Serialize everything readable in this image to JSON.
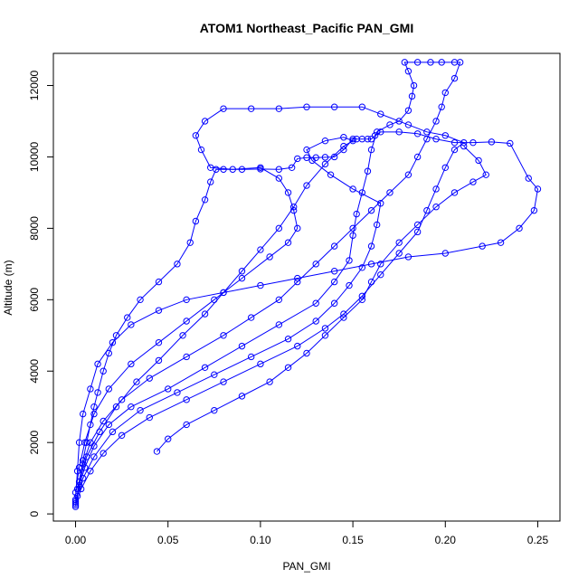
{
  "chart_data": {
    "type": "line",
    "title": "ATOM1 Northeast_Pacific PAN_GMI",
    "xlabel": "PAN_GMI",
    "ylabel": "Altitude (m)",
    "xlim": [
      -0.012,
      0.262
    ],
    "ylim": [
      -200,
      12900
    ],
    "xticks": [
      0.0,
      0.05,
      0.1,
      0.15,
      0.2,
      0.25
    ],
    "xtick_labels": [
      "0.00",
      "0.05",
      "0.10",
      "0.15",
      "0.20",
      "0.25"
    ],
    "yticks": [
      0,
      2000,
      4000,
      6000,
      8000,
      10000,
      12000
    ],
    "ytick_labels": [
      "0",
      "2000",
      "4000",
      "6000",
      "8000",
      "10000",
      "12000"
    ],
    "grid": false,
    "marker": "open-circle",
    "color": "#0000ff",
    "series": [
      {
        "points": [
          [
            0.0,
            200
          ],
          [
            0.001,
            500
          ],
          [
            0.002,
            900
          ],
          [
            0.004,
            1500
          ],
          [
            0.006,
            2000
          ],
          [
            0.008,
            2500
          ],
          [
            0.01,
            3000
          ],
          [
            0.012,
            3400
          ],
          [
            0.015,
            4000
          ],
          [
            0.018,
            4500
          ],
          [
            0.022,
            5000
          ],
          [
            0.028,
            5500
          ],
          [
            0.035,
            6000
          ],
          [
            0.045,
            6500
          ],
          [
            0.055,
            7000
          ],
          [
            0.062,
            7600
          ],
          [
            0.065,
            8200
          ],
          [
            0.07,
            8800
          ],
          [
            0.073,
            9300
          ],
          [
            0.076,
            9650
          ],
          [
            0.08,
            9650
          ],
          [
            0.09,
            9650
          ],
          [
            0.1,
            9660
          ],
          [
            0.11,
            9650
          ],
          [
            0.117,
            9700
          ],
          [
            0.12,
            9950
          ],
          [
            0.125,
            9980
          ],
          [
            0.13,
            9980
          ],
          [
            0.135,
            9990
          ],
          [
            0.14,
            10000
          ],
          [
            0.145,
            10200
          ],
          [
            0.15,
            10500
          ],
          [
            0.152,
            10500
          ],
          [
            0.155,
            10500
          ],
          [
            0.158,
            10500
          ],
          [
            0.16,
            10500
          ],
          [
            0.162,
            10600
          ],
          [
            0.165,
            10700
          ],
          [
            0.175,
            10700
          ],
          [
            0.185,
            10650
          ],
          [
            0.195,
            10500
          ],
          [
            0.205,
            10400
          ],
          [
            0.215,
            10400
          ],
          [
            0.225,
            10420
          ],
          [
            0.235,
            10380
          ],
          [
            0.245,
            9400
          ],
          [
            0.25,
            9100
          ],
          [
            0.248,
            8500
          ],
          [
            0.24,
            8000
          ],
          [
            0.23,
            7600
          ],
          [
            0.22,
            7500
          ],
          [
            0.2,
            7300
          ],
          [
            0.18,
            7200
          ],
          [
            0.16,
            7000
          ],
          [
            0.14,
            6800
          ],
          [
            0.12,
            6600
          ],
          [
            0.1,
            6400
          ],
          [
            0.08,
            6200
          ],
          [
            0.06,
            6000
          ],
          [
            0.045,
            5700
          ],
          [
            0.03,
            5300
          ],
          [
            0.02,
            4800
          ],
          [
            0.012,
            4200
          ],
          [
            0.008,
            3500
          ],
          [
            0.004,
            2800
          ],
          [
            0.002,
            2000
          ],
          [
            0.001,
            1200
          ],
          [
            0.0,
            400
          ]
        ]
      },
      {
        "points": [
          [
            0.0,
            300
          ],
          [
            0.002,
            800
          ],
          [
            0.005,
            1300
          ],
          [
            0.01,
            1900
          ],
          [
            0.018,
            2500
          ],
          [
            0.03,
            3000
          ],
          [
            0.05,
            3500
          ],
          [
            0.07,
            4100
          ],
          [
            0.09,
            4700
          ],
          [
            0.11,
            5300
          ],
          [
            0.13,
            5900
          ],
          [
            0.14,
            6500
          ],
          [
            0.148,
            7100
          ],
          [
            0.15,
            7800
          ],
          [
            0.152,
            8400
          ],
          [
            0.155,
            9000
          ],
          [
            0.158,
            9600
          ],
          [
            0.16,
            10200
          ],
          [
            0.163,
            10700
          ],
          [
            0.17,
            10900
          ],
          [
            0.175,
            11000
          ],
          [
            0.18,
            11300
          ],
          [
            0.182,
            11700
          ],
          [
            0.183,
            12000
          ],
          [
            0.18,
            12400
          ],
          [
            0.178,
            12650
          ],
          [
            0.185,
            12650
          ],
          [
            0.192,
            12650
          ],
          [
            0.198,
            12650
          ],
          [
            0.205,
            12650
          ],
          [
            0.208,
            12650
          ],
          [
            0.205,
            12200
          ],
          [
            0.2,
            11800
          ],
          [
            0.198,
            11400
          ],
          [
            0.195,
            11000
          ],
          [
            0.19,
            10500
          ],
          [
            0.185,
            10000
          ],
          [
            0.18,
            9500
          ],
          [
            0.17,
            9000
          ],
          [
            0.16,
            8500
          ],
          [
            0.15,
            8000
          ],
          [
            0.14,
            7500
          ],
          [
            0.13,
            7000
          ],
          [
            0.12,
            6500
          ],
          [
            0.11,
            6000
          ],
          [
            0.095,
            5500
          ],
          [
            0.08,
            5000
          ],
          [
            0.06,
            4400
          ],
          [
            0.04,
            3800
          ],
          [
            0.025,
            3200
          ],
          [
            0.015,
            2600
          ],
          [
            0.008,
            2000
          ],
          [
            0.004,
            1400
          ],
          [
            0.001,
            700
          ]
        ]
      },
      {
        "points": [
          [
            0.0,
            250
          ],
          [
            0.003,
            700
          ],
          [
            0.008,
            1200
          ],
          [
            0.015,
            1700
          ],
          [
            0.025,
            2200
          ],
          [
            0.04,
            2700
          ],
          [
            0.06,
            3200
          ],
          [
            0.08,
            3700
          ],
          [
            0.1,
            4200
          ],
          [
            0.12,
            4700
          ],
          [
            0.135,
            5200
          ],
          [
            0.145,
            5600
          ],
          [
            0.155,
            6100
          ],
          [
            0.165,
            6700
          ],
          [
            0.175,
            7300
          ],
          [
            0.185,
            7900
          ],
          [
            0.19,
            8500
          ],
          [
            0.195,
            9100
          ],
          [
            0.2,
            9700
          ],
          [
            0.205,
            10200
          ],
          [
            0.21,
            10400
          ],
          [
            0.2,
            10600
          ],
          [
            0.19,
            10700
          ],
          [
            0.18,
            10900
          ],
          [
            0.165,
            11200
          ],
          [
            0.155,
            11400
          ],
          [
            0.14,
            11400
          ],
          [
            0.125,
            11400
          ],
          [
            0.11,
            11350
          ],
          [
            0.095,
            11350
          ],
          [
            0.08,
            11350
          ],
          [
            0.07,
            11000
          ],
          [
            0.065,
            10600
          ],
          [
            0.068,
            10200
          ],
          [
            0.073,
            9700
          ],
          [
            0.085,
            9650
          ],
          [
            0.1,
            9700
          ],
          [
            0.11,
            9400
          ],
          [
            0.115,
            9000
          ],
          [
            0.118,
            8500
          ],
          [
            0.12,
            8000
          ],
          [
            0.115,
            7600
          ],
          [
            0.105,
            7200
          ],
          [
            0.09,
            6600
          ],
          [
            0.075,
            6000
          ],
          [
            0.06,
            5400
          ],
          [
            0.045,
            4800
          ],
          [
            0.03,
            4200
          ],
          [
            0.018,
            3500
          ],
          [
            0.01,
            2800
          ],
          [
            0.005,
            2000
          ],
          [
            0.002,
            1300
          ],
          [
            0.0,
            600
          ]
        ]
      },
      {
        "points": [
          [
            0.0,
            350
          ],
          [
            0.004,
            1000
          ],
          [
            0.01,
            1600
          ],
          [
            0.02,
            2300
          ],
          [
            0.035,
            2900
          ],
          [
            0.055,
            3400
          ],
          [
            0.075,
            3900
          ],
          [
            0.095,
            4400
          ],
          [
            0.115,
            4900
          ],
          [
            0.13,
            5400
          ],
          [
            0.14,
            5900
          ],
          [
            0.148,
            6400
          ],
          [
            0.155,
            6900
          ],
          [
            0.16,
            7500
          ],
          [
            0.163,
            8100
          ],
          [
            0.165,
            8700
          ],
          [
            0.15,
            9100
          ],
          [
            0.138,
            9500
          ],
          [
            0.128,
            9900
          ],
          [
            0.125,
            10200
          ],
          [
            0.135,
            10450
          ],
          [
            0.145,
            10550
          ],
          [
            0.15,
            10450
          ],
          [
            0.145,
            10300
          ],
          [
            0.135,
            9800
          ],
          [
            0.125,
            9200
          ],
          [
            0.118,
            8600
          ],
          [
            0.11,
            8000
          ],
          [
            0.1,
            7400
          ],
          [
            0.09,
            6800
          ],
          [
            0.08,
            6200
          ],
          [
            0.07,
            5600
          ],
          [
            0.058,
            5000
          ],
          [
            0.045,
            4300
          ],
          [
            0.033,
            3700
          ],
          [
            0.022,
            3000
          ],
          [
            0.013,
            2300
          ],
          [
            0.006,
            1600
          ],
          [
            0.002,
            900
          ]
        ]
      },
      {
        "points": [
          [
            0.044,
            1750
          ],
          [
            0.05,
            2100
          ],
          [
            0.06,
            2500
          ],
          [
            0.075,
            2900
          ],
          [
            0.09,
            3300
          ],
          [
            0.105,
            3700
          ],
          [
            0.115,
            4100
          ],
          [
            0.125,
            4500
          ],
          [
            0.135,
            5000
          ],
          [
            0.145,
            5500
          ],
          [
            0.155,
            6000
          ],
          [
            0.16,
            6500
          ],
          [
            0.165,
            7000
          ],
          [
            0.175,
            7600
          ],
          [
            0.185,
            8100
          ],
          [
            0.195,
            8600
          ],
          [
            0.205,
            9000
          ],
          [
            0.215,
            9300
          ],
          [
            0.222,
            9500
          ],
          [
            0.218,
            9900
          ],
          [
            0.21,
            10300
          ]
        ]
      }
    ]
  }
}
